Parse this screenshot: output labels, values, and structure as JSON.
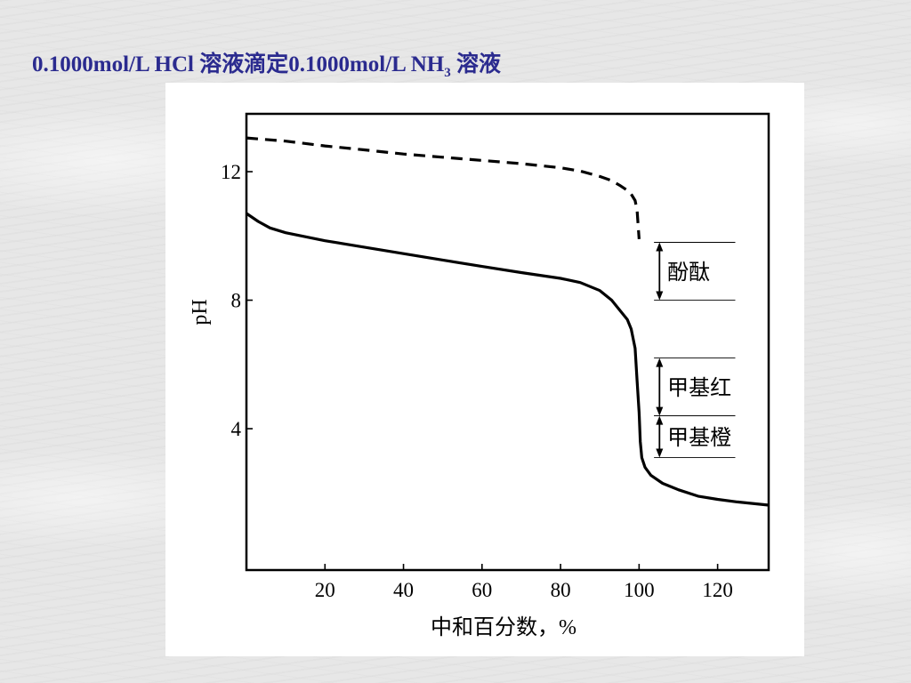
{
  "slide": {
    "title_main": "0.1000mol/L HCl 溶液滴定0.1000mol/L NH",
    "title_sub": "3",
    "title_tail": " 溶液"
  },
  "chart_data": {
    "type": "line",
    "xlabel": "中和百分数，%",
    "ylabel": "pH",
    "xlim": [
      0,
      133
    ],
    "ylim": [
      -0.4,
      13.8
    ],
    "xticks": [
      20,
      40,
      60,
      80,
      100,
      120
    ],
    "yticks": [
      4,
      8,
      12
    ],
    "grid": false,
    "legend": "none",
    "series": [
      {
        "style": "solid",
        "x": [
          0,
          3,
          6,
          10,
          20,
          30,
          40,
          50,
          60,
          70,
          80,
          85,
          90,
          93,
          95,
          97,
          98,
          99,
          99.5,
          100,
          100.3,
          100.7,
          101.5,
          103,
          106,
          110,
          115,
          120,
          125,
          133
        ],
        "y": [
          10.7,
          10.45,
          10.25,
          10.1,
          9.85,
          9.65,
          9.45,
          9.25,
          9.05,
          8.86,
          8.68,
          8.55,
          8.3,
          8.0,
          7.7,
          7.4,
          7.1,
          6.5,
          5.5,
          4.5,
          3.6,
          3.1,
          2.8,
          2.55,
          2.3,
          2.1,
          1.9,
          1.8,
          1.72,
          1.62
        ]
      },
      {
        "style": "dashed",
        "x": [
          0,
          10,
          20,
          30,
          40,
          50,
          60,
          70,
          80,
          85,
          90,
          93,
          95,
          97,
          98,
          99,
          99.5,
          100
        ],
        "y": [
          13.05,
          12.95,
          12.8,
          12.68,
          12.55,
          12.45,
          12.35,
          12.25,
          12.12,
          12.02,
          11.85,
          11.72,
          11.58,
          11.42,
          11.3,
          11.1,
          10.8,
          9.9
        ]
      }
    ],
    "indicator_ranges": [
      {
        "name": "酚酞",
        "low": 8.0,
        "high": 9.8
      },
      {
        "name": "甲基红",
        "low": 4.4,
        "high": 6.2
      },
      {
        "name": "甲基橙",
        "low": 3.1,
        "high": 4.4
      }
    ]
  }
}
